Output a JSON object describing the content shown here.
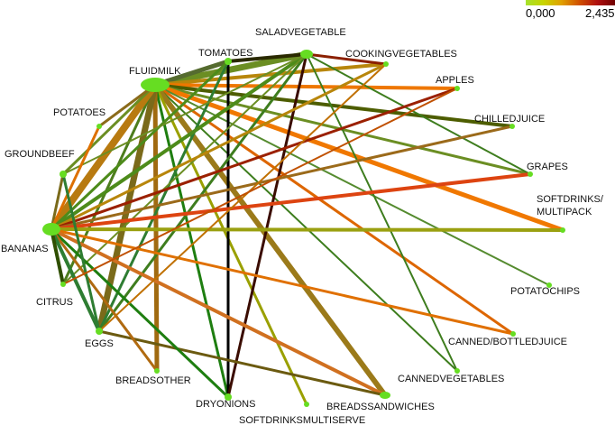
{
  "legend": {
    "min_label": "0,000",
    "max_label": "2,435",
    "gradient_colors": [
      "#a6e22e",
      "#c8d400",
      "#e0a000",
      "#d05000",
      "#b01010",
      "#700000"
    ]
  },
  "node_color": "#66dd22",
  "nodes": [
    {
      "id": "fluidmilk",
      "label": "FLUIDMILK"
    },
    {
      "id": "tomatoes",
      "label": "TOMATOES"
    },
    {
      "id": "saladvegetable",
      "label": "SALADVEGETABLE"
    },
    {
      "id": "cookingvegetables",
      "label": "COOKINGVEGETABLES"
    },
    {
      "id": "apples",
      "label": "APPLES"
    },
    {
      "id": "chilledjuice",
      "label": "CHILLEDJUICE"
    },
    {
      "id": "grapes",
      "label": "GRAPES"
    },
    {
      "id": "softdrinks_multipack",
      "label": "SOFTDRINKS/\nMULTIPACK"
    },
    {
      "id": "potatochips",
      "label": "POTATOCHIPS"
    },
    {
      "id": "canned_bottledjuice",
      "label": "CANNED/BOTTLEDJUICE"
    },
    {
      "id": "cannedvegetables",
      "label": "CANNEDVEGETABLES"
    },
    {
      "id": "breadssandwiches",
      "label": "BREADSSANDWICHES"
    },
    {
      "id": "softdrinksmultiserve",
      "label": "SOFTDRINKSMULTISERVE"
    },
    {
      "id": "dryonions",
      "label": "DRYONIONS"
    },
    {
      "id": "breadsother",
      "label": "BREADSOTHER"
    },
    {
      "id": "eggs",
      "label": "EGGS"
    },
    {
      "id": "citrus",
      "label": "CITRUS"
    },
    {
      "id": "bananas",
      "label": "BANANAS"
    },
    {
      "id": "groundbeef",
      "label": "GROUNDBEEF"
    },
    {
      "id": "potatoes",
      "label": "POTATOES"
    }
  ],
  "edges": [
    {
      "from": "fluidmilk",
      "to": "saladvegetable",
      "color": "#6b8e23",
      "weight": 7
    },
    {
      "from": "fluidmilk",
      "to": "tomatoes",
      "color": "#556b2f",
      "weight": 5
    },
    {
      "from": "fluidmilk",
      "to": "cookingvegetables",
      "color": "#b8860b",
      "weight": 4
    },
    {
      "from": "fluidmilk",
      "to": "apples",
      "color": "#ee7700",
      "weight": 4
    },
    {
      "from": "fluidmilk",
      "to": "chilledjuice",
      "color": "#4d5d00",
      "weight": 4
    },
    {
      "from": "fluidmilk",
      "to": "grapes",
      "color": "#6b8e23",
      "weight": 3
    },
    {
      "from": "fluidmilk",
      "to": "softdrinks_multipack",
      "color": "#f07800",
      "weight": 5
    },
    {
      "from": "fluidmilk",
      "to": "potatochips",
      "color": "#558b2f",
      "weight": 2
    },
    {
      "from": "fluidmilk",
      "to": "canned_bottledjuice",
      "color": "#dd6600",
      "weight": 3
    },
    {
      "from": "fluidmilk",
      "to": "cannedvegetables",
      "color": "#3d7d1d",
      "weight": 2
    },
    {
      "from": "fluidmilk",
      "to": "breadssandwiches",
      "color": "#9b7a1a",
      "weight": 6
    },
    {
      "from": "fluidmilk",
      "to": "softdrinksmultiserve",
      "color": "#9aa000",
      "weight": 3
    },
    {
      "from": "fluidmilk",
      "to": "dryonions",
      "color": "#1e7e10",
      "weight": 3
    },
    {
      "from": "fluidmilk",
      "to": "breadsother",
      "color": "#a06a10",
      "weight": 5
    },
    {
      "from": "fluidmilk",
      "to": "eggs",
      "color": "#7a6a1a",
      "weight": 7
    },
    {
      "from": "fluidmilk",
      "to": "citrus",
      "color": "#4d7d1d",
      "weight": 3
    },
    {
      "from": "fluidmilk",
      "to": "bananas",
      "color": "#b87a10",
      "weight": 8
    },
    {
      "from": "fluidmilk",
      "to": "groundbeef",
      "color": "#6b8e23",
      "weight": 3
    },
    {
      "from": "fluidmilk",
      "to": "potatoes",
      "color": "#8b6b1a",
      "weight": 3
    },
    {
      "from": "tomatoes",
      "to": "saladvegetable",
      "color": "#2a2a00",
      "weight": 4
    },
    {
      "from": "tomatoes",
      "to": "dryonions",
      "color": "#000000",
      "weight": 3
    },
    {
      "from": "tomatoes",
      "to": "eggs",
      "color": "#2e7d32",
      "weight": 3
    },
    {
      "from": "tomatoes",
      "to": "bananas",
      "color": "#4d8b1a",
      "weight": 3
    },
    {
      "from": "saladvegetable",
      "to": "cookingvegetables",
      "color": "#8b2000",
      "weight": 3
    },
    {
      "from": "saladvegetable",
      "to": "dryonions",
      "color": "#3a0c00",
      "weight": 3
    },
    {
      "from": "saladvegetable",
      "to": "grapes",
      "color": "#3e7d1e",
      "weight": 2
    },
    {
      "from": "saladvegetable",
      "to": "cannedvegetables",
      "color": "#3e7d1e",
      "weight": 2
    },
    {
      "from": "saladvegetable",
      "to": "bananas",
      "color": "#4d8b1a",
      "weight": 4
    },
    {
      "from": "saladvegetable",
      "to": "eggs",
      "color": "#3e7d1e",
      "weight": 3
    },
    {
      "from": "saladvegetable",
      "to": "groundbeef",
      "color": "#6b8e23",
      "weight": 2
    },
    {
      "from": "saladvegetable",
      "to": "citrus",
      "color": "#6b8e23",
      "weight": 2
    },
    {
      "from": "cookingvegetables",
      "to": "bananas",
      "color": "#b8860b",
      "weight": 3
    },
    {
      "from": "apples",
      "to": "bananas",
      "color": "#9b2000",
      "weight": 3
    },
    {
      "from": "chilledjuice",
      "to": "bananas",
      "color": "#9b6a1a",
      "weight": 3
    },
    {
      "from": "grapes",
      "to": "bananas",
      "color": "#dd4411",
      "weight": 4
    },
    {
      "from": "softdrinks_multipack",
      "to": "bananas",
      "color": "#9aa010",
      "weight": 4
    },
    {
      "from": "canned_bottledjuice",
      "to": "bananas",
      "color": "#e07000",
      "weight": 3
    },
    {
      "from": "breadssandwiches",
      "to": "bananas",
      "color": "#d07020",
      "weight": 4
    },
    {
      "from": "breadssandwiches",
      "to": "eggs",
      "color": "#6b5a10",
      "weight": 3
    },
    {
      "from": "dryonions",
      "to": "bananas",
      "color": "#1e7e10",
      "weight": 3
    },
    {
      "from": "breadsother",
      "to": "bananas",
      "color": "#b06a10",
      "weight": 3
    },
    {
      "from": "eggs",
      "to": "bananas",
      "color": "#2e7d32",
      "weight": 4
    },
    {
      "from": "citrus",
      "to": "bananas",
      "color": "#2f4f00",
      "weight": 4
    },
    {
      "from": "groundbeef",
      "to": "bananas",
      "color": "#7a6a1a",
      "weight": 3
    },
    {
      "from": "potatoes",
      "to": "bananas",
      "color": "#dd7000",
      "weight": 3
    },
    {
      "from": "groundbeef",
      "to": "eggs",
      "color": "#2e7d32",
      "weight": 3
    },
    {
      "from": "cookingvegetables",
      "to": "eggs",
      "color": "#c07000",
      "weight": 2
    },
    {
      "from": "apples",
      "to": "citrus",
      "color": "#c05000",
      "weight": 2
    }
  ]
}
